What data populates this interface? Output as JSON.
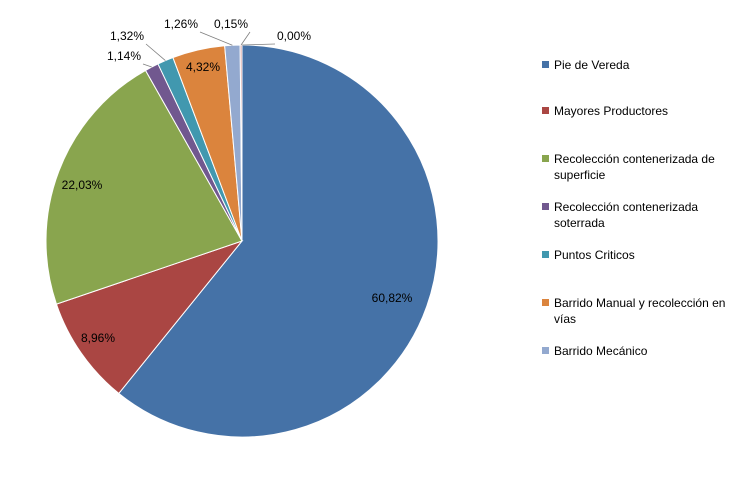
{
  "chart_data": {
    "type": "pie",
    "title": "",
    "legend_position": "right",
    "slices": [
      {
        "label": "Pie de Vereda",
        "value": 60.82,
        "display": "60,82%",
        "color": "#4572A7"
      },
      {
        "label": "Mayores Productores",
        "value": 8.96,
        "display": "8,96%",
        "color": "#AA4643"
      },
      {
        "label": "Recolección contenerizada de superficie",
        "value": 22.03,
        "display": "22,03%",
        "color": "#89A54E"
      },
      {
        "label": "Recolección contenerizada soterrada",
        "value": 1.14,
        "display": "1,14%",
        "color": "#71588F"
      },
      {
        "label": "Puntos Criticos",
        "value": 1.32,
        "display": "1,32%",
        "color": "#4198AF"
      },
      {
        "label": "Barrido Manual y recolección en vías",
        "value": 4.32,
        "display": "4,32%",
        "color": "#DB843D"
      },
      {
        "label": "Barrido Mecánico",
        "value": 1.26,
        "display": "1,26%",
        "color": "#93A9CF"
      },
      {
        "label": "",
        "value": 0.15,
        "display": "0,15%",
        "color": "#D19392"
      },
      {
        "label": "",
        "value": 0.0,
        "display": "0,00%",
        "color": "#B9CD96"
      }
    ]
  }
}
